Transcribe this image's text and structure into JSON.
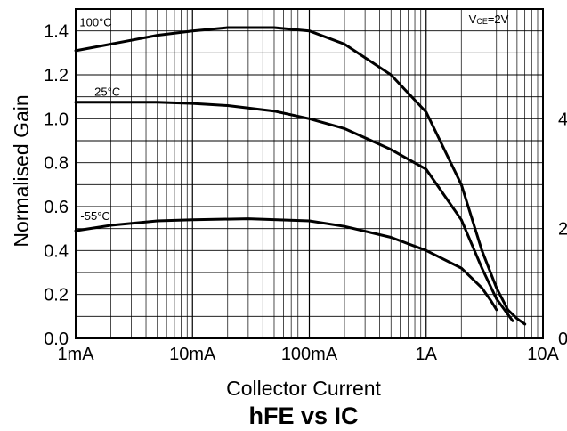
{
  "chart_data": {
    "type": "line",
    "title": "hFE vs IC",
    "xlabel": "Collector Current",
    "ylabel": "Normalised Gain",
    "x_scale": "log",
    "xlim": [
      0.001,
      10
    ],
    "ylim": [
      0,
      1.5
    ],
    "x_ticks": [
      {
        "value": 0.001,
        "label": "1mA"
      },
      {
        "value": 0.01,
        "label": "10mA"
      },
      {
        "value": 0.1,
        "label": "100mA"
      },
      {
        "value": 1,
        "label": "1A"
      },
      {
        "value": 10,
        "label": "10A"
      }
    ],
    "y_ticks": [
      {
        "value": 0,
        "label": "0.0"
      },
      {
        "value": 0.2,
        "label": "0.2"
      },
      {
        "value": 0.4,
        "label": "0.4"
      },
      {
        "value": 0.6,
        "label": "0.6"
      },
      {
        "value": 0.8,
        "label": "0.8"
      },
      {
        "value": 1.0,
        "label": "1.0"
      },
      {
        "value": 1.2,
        "label": "1.2"
      },
      {
        "value": 1.4,
        "label": "1.4"
      }
    ],
    "right_ticks": [
      {
        "value": 0,
        "label": "0"
      },
      {
        "value": 0.5,
        "label": "2"
      },
      {
        "value": 1.0,
        "label": "4"
      }
    ],
    "grid": true,
    "annotation": "VCE=2V",
    "series": [
      {
        "name": "100°C",
        "label_at": {
          "x": 0.00108,
          "y": 1.42
        },
        "points": [
          [
            0.001,
            1.31
          ],
          [
            0.002,
            1.34
          ],
          [
            0.005,
            1.38
          ],
          [
            0.01,
            1.4
          ],
          [
            0.02,
            1.415
          ],
          [
            0.05,
            1.415
          ],
          [
            0.1,
            1.4
          ],
          [
            0.2,
            1.34
          ],
          [
            0.5,
            1.2
          ],
          [
            1,
            1.03
          ],
          [
            2,
            0.7
          ],
          [
            3,
            0.4
          ],
          [
            4,
            0.23
          ],
          [
            5,
            0.13
          ],
          [
            6,
            0.09
          ],
          [
            7,
            0.065
          ]
        ]
      },
      {
        "name": "25°C",
        "label_at": {
          "x": 0.00145,
          "y": 1.105
        },
        "points": [
          [
            0.001,
            1.075
          ],
          [
            0.005,
            1.075
          ],
          [
            0.01,
            1.07
          ],
          [
            0.02,
            1.06
          ],
          [
            0.05,
            1.035
          ],
          [
            0.1,
            1.0
          ],
          [
            0.2,
            0.955
          ],
          [
            0.5,
            0.86
          ],
          [
            1,
            0.77
          ],
          [
            2,
            0.54
          ],
          [
            3,
            0.32
          ],
          [
            4,
            0.18
          ],
          [
            5.5,
            0.08
          ]
        ]
      },
      {
        "name": "-55°C",
        "label_at": {
          "x": 0.0011,
          "y": 0.54
        },
        "points": [
          [
            0.001,
            0.49
          ],
          [
            0.002,
            0.515
          ],
          [
            0.005,
            0.535
          ],
          [
            0.01,
            0.54
          ],
          [
            0.03,
            0.545
          ],
          [
            0.1,
            0.535
          ],
          [
            0.2,
            0.51
          ],
          [
            0.5,
            0.46
          ],
          [
            1,
            0.4
          ],
          [
            2,
            0.32
          ],
          [
            3,
            0.23
          ],
          [
            3.6,
            0.17
          ],
          [
            4.0,
            0.13
          ]
        ]
      }
    ]
  }
}
